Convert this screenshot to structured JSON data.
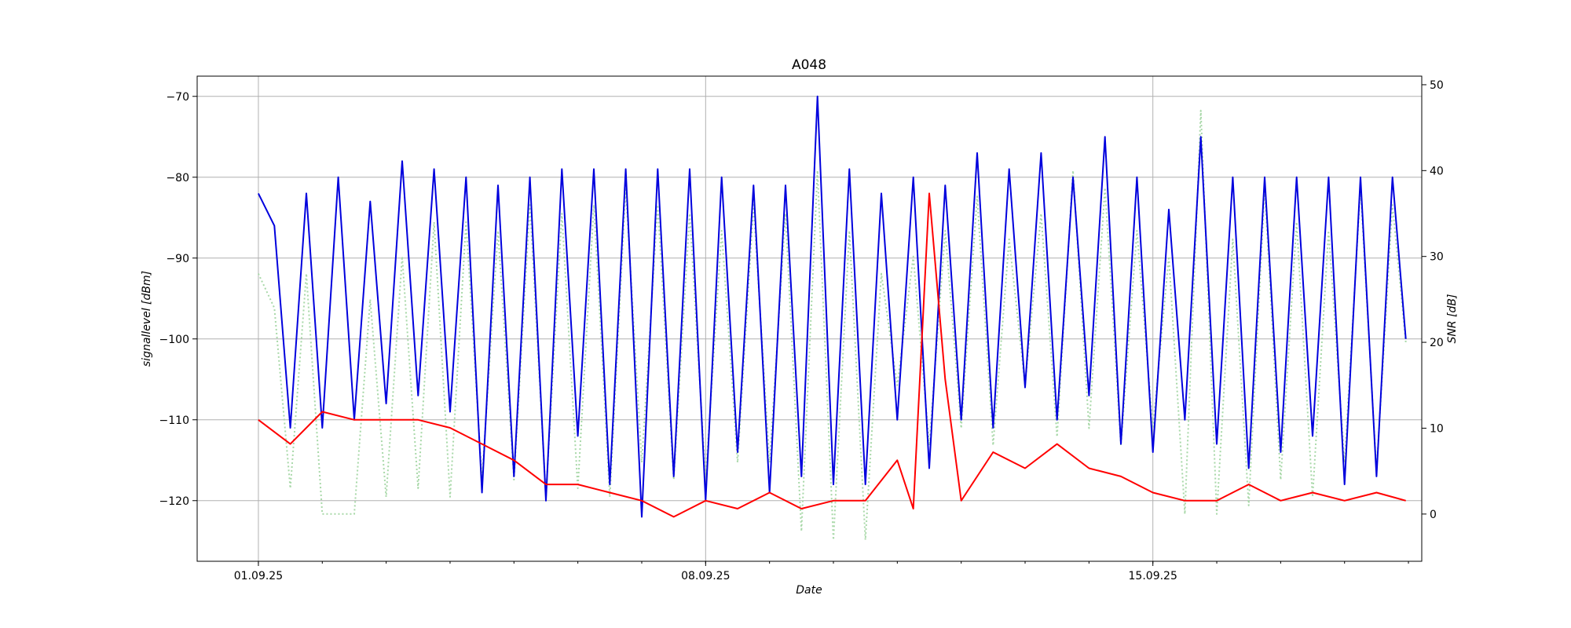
{
  "chart_data": {
    "type": "line",
    "title": "A048",
    "xlabel": "Date",
    "ylabel_left": "signallevel [dBm]",
    "ylabel_right": "SNR [dB]",
    "x_tick_labels": [
      "01.09.25",
      "08.09.25",
      "15.09.25"
    ],
    "y_left_ticks": [
      -70,
      -80,
      -90,
      -100,
      -110,
      -120
    ],
    "y_right_ticks": [
      50,
      40,
      30,
      20,
      10,
      0
    ],
    "xlim": [
      "2025-08-31 01:00",
      "2025-09-19 05:00"
    ],
    "ylim_left": [
      -127.5,
      -67.5
    ],
    "ylim_right": [
      -5.5,
      51
    ],
    "grid": true,
    "colors": {
      "signal": "#0000dd",
      "noise": "#ff0000",
      "snr": "#a8d8a8"
    },
    "series": [
      {
        "axis": "left",
        "color": "#0000dd",
        "style": "solid",
        "x": [
          "2025-09-01 00:00",
          "2025-09-01 06:00",
          "2025-09-01 12:00",
          "2025-09-01 18:00",
          "2025-09-02 00:00",
          "2025-09-02 06:00",
          "2025-09-02 12:00",
          "2025-09-02 18:00",
          "2025-09-03 00:00",
          "2025-09-03 06:00",
          "2025-09-03 12:00",
          "2025-09-03 18:00",
          "2025-09-04 00:00",
          "2025-09-04 06:00",
          "2025-09-04 12:00",
          "2025-09-04 18:00",
          "2025-09-05 00:00",
          "2025-09-05 06:00",
          "2025-09-05 12:00",
          "2025-09-05 18:00",
          "2025-09-06 00:00",
          "2025-09-06 06:00",
          "2025-09-06 12:00",
          "2025-09-06 18:00",
          "2025-09-07 00:00",
          "2025-09-07 06:00",
          "2025-09-07 12:00",
          "2025-09-07 18:00",
          "2025-09-08 00:00",
          "2025-09-08 06:00",
          "2025-09-08 12:00",
          "2025-09-08 18:00",
          "2025-09-09 00:00",
          "2025-09-09 06:00",
          "2025-09-09 12:00",
          "2025-09-09 18:00",
          "2025-09-10 00:00",
          "2025-09-10 06:00",
          "2025-09-10 12:00",
          "2025-09-10 18:00",
          "2025-09-11 00:00",
          "2025-09-11 06:00",
          "2025-09-11 12:00",
          "2025-09-11 18:00",
          "2025-09-12 00:00",
          "2025-09-12 06:00",
          "2025-09-12 12:00",
          "2025-09-12 18:00",
          "2025-09-13 00:00",
          "2025-09-13 06:00",
          "2025-09-13 12:00",
          "2025-09-13 18:00",
          "2025-09-14 00:00",
          "2025-09-14 06:00",
          "2025-09-14 12:00",
          "2025-09-14 18:00",
          "2025-09-15 00:00",
          "2025-09-15 06:00",
          "2025-09-15 12:00",
          "2025-09-15 18:00",
          "2025-09-16 00:00",
          "2025-09-16 06:00",
          "2025-09-16 12:00",
          "2025-09-16 18:00",
          "2025-09-17 00:00",
          "2025-09-17 06:00",
          "2025-09-17 12:00",
          "2025-09-17 18:00",
          "2025-09-18 00:00",
          "2025-09-18 06:00",
          "2025-09-18 12:00",
          "2025-09-18 18:00",
          "2025-09-18 23:00"
        ],
        "y": [
          -82,
          -86,
          -111,
          -82,
          -111,
          -80,
          -110,
          -83,
          -108,
          -78,
          -107,
          -79,
          -109,
          -80,
          -119,
          -81,
          -117,
          -80,
          -120,
          -79,
          -112,
          -79,
          -118,
          -79,
          -122,
          -79,
          -117,
          -79,
          -120,
          -80,
          -114,
          -81,
          -119,
          -81,
          -117,
          -70,
          -118,
          -79,
          -118,
          -82,
          -110,
          -80,
          -116,
          -81,
          -110,
          -77,
          -111,
          -79,
          -106,
          -77,
          -110,
          -80,
          -107,
          -75,
          -113,
          -80,
          -114,
          -84,
          -110,
          -75,
          -113,
          -80,
          -116,
          -80,
          -114,
          -80,
          -112,
          -80,
          -118,
          -80,
          -117,
          -80,
          -100
        ]
      },
      {
        "axis": "left",
        "color": "#ff0000",
        "style": "solid",
        "x": [
          "2025-09-01 00:00",
          "2025-09-01 12:00",
          "2025-09-02 00:00",
          "2025-09-02 12:00",
          "2025-09-03 00:00",
          "2025-09-03 12:00",
          "2025-09-04 00:00",
          "2025-09-04 12:00",
          "2025-09-05 00:00",
          "2025-09-05 12:00",
          "2025-09-06 00:00",
          "2025-09-06 12:00",
          "2025-09-07 00:00",
          "2025-09-07 12:00",
          "2025-09-08 00:00",
          "2025-09-08 12:00",
          "2025-09-09 00:00",
          "2025-09-09 12:00",
          "2025-09-10 00:00",
          "2025-09-10 12:00",
          "2025-09-11 00:00",
          "2025-09-11 06:00",
          "2025-09-11 12:00",
          "2025-09-11 18:00",
          "2025-09-12 00:00",
          "2025-09-12 12:00",
          "2025-09-13 00:00",
          "2025-09-13 12:00",
          "2025-09-14 00:00",
          "2025-09-14 12:00",
          "2025-09-15 00:00",
          "2025-09-15 12:00",
          "2025-09-16 00:00",
          "2025-09-16 12:00",
          "2025-09-17 00:00",
          "2025-09-17 12:00",
          "2025-09-18 00:00",
          "2025-09-18 12:00",
          "2025-09-18 23:00"
        ],
        "y": [
          -110,
          -113,
          -109,
          -110,
          -110,
          -110,
          -111,
          -113,
          -115,
          -118,
          -118,
          -119,
          -120,
          -122,
          -120,
          -121,
          -119,
          -121,
          -120,
          -120,
          -115,
          -121,
          -82,
          -105,
          -120,
          -114,
          -116,
          -113,
          -116,
          -117,
          -119,
          -120,
          -120,
          -118,
          -120,
          -119,
          -120,
          -119,
          -120
        ]
      },
      {
        "axis": "right",
        "color": "#a8d8a8",
        "style": "dotted",
        "x": [
          "2025-09-01 00:00",
          "2025-09-01 06:00",
          "2025-09-01 12:00",
          "2025-09-01 18:00",
          "2025-09-02 00:00",
          "2025-09-02 06:00",
          "2025-09-02 12:00",
          "2025-09-02 18:00",
          "2025-09-03 00:00",
          "2025-09-03 06:00",
          "2025-09-03 12:00",
          "2025-09-03 18:00",
          "2025-09-04 00:00",
          "2025-09-04 06:00",
          "2025-09-04 12:00",
          "2025-09-04 18:00",
          "2025-09-05 00:00",
          "2025-09-05 06:00",
          "2025-09-05 12:00",
          "2025-09-05 18:00",
          "2025-09-06 00:00",
          "2025-09-06 06:00",
          "2025-09-06 12:00",
          "2025-09-06 18:00",
          "2025-09-07 00:00",
          "2025-09-07 06:00",
          "2025-09-07 12:00",
          "2025-09-07 18:00",
          "2025-09-08 00:00",
          "2025-09-08 06:00",
          "2025-09-08 12:00",
          "2025-09-08 18:00",
          "2025-09-09 00:00",
          "2025-09-09 06:00",
          "2025-09-09 12:00",
          "2025-09-09 18:00",
          "2025-09-10 00:00",
          "2025-09-10 06:00",
          "2025-09-10 12:00",
          "2025-09-10 18:00",
          "2025-09-11 00:00",
          "2025-09-11 06:00",
          "2025-09-11 12:00",
          "2025-09-11 18:00",
          "2025-09-12 00:00",
          "2025-09-12 06:00",
          "2025-09-12 12:00",
          "2025-09-12 18:00",
          "2025-09-13 00:00",
          "2025-09-13 06:00",
          "2025-09-13 12:00",
          "2025-09-13 18:00",
          "2025-09-14 00:00",
          "2025-09-14 06:00",
          "2025-09-14 12:00",
          "2025-09-14 18:00",
          "2025-09-15 00:00",
          "2025-09-15 06:00",
          "2025-09-15 12:00",
          "2025-09-15 18:00",
          "2025-09-16 00:00",
          "2025-09-16 06:00",
          "2025-09-16 12:00",
          "2025-09-16 18:00",
          "2025-09-17 00:00",
          "2025-09-17 06:00",
          "2025-09-17 12:00",
          "2025-09-17 18:00",
          "2025-09-18 00:00",
          "2025-09-18 06:00",
          "2025-09-18 12:00",
          "2025-09-18 18:00",
          "2025-09-18 23:00"
        ],
        "y": [
          28,
          24,
          3,
          28,
          0,
          0,
          0,
          25,
          2,
          30,
          3,
          34,
          2,
          34,
          4,
          33,
          4,
          36,
          2,
          35,
          3,
          36,
          2,
          38,
          6,
          36,
          4,
          35,
          4,
          33,
          6,
          36,
          6,
          35,
          -2,
          40,
          -3,
          33,
          -3,
          28,
          15,
          30,
          8,
          33,
          10,
          37,
          8,
          32,
          15,
          35,
          9,
          40,
          10,
          38,
          8,
          33,
          10,
          30,
          0,
          47,
          0,
          32,
          1,
          38,
          4,
          34,
          2,
          33,
          6,
          38,
          5,
          36,
          20
        ]
      }
    ]
  }
}
